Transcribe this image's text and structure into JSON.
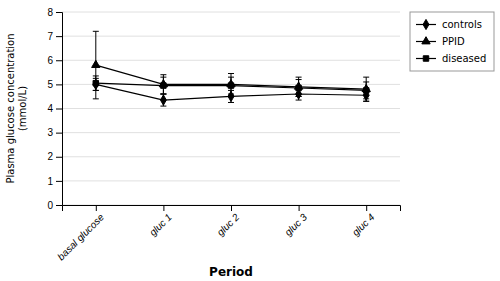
{
  "chart_data": {
    "type": "line",
    "x_label": "Period",
    "y_label": "Plasma glucose concentration\n(mmol/L)",
    "categories": [
      "basal glucose",
      "gluc 1",
      "gluc 2",
      "gluc 3",
      "gluc 4"
    ],
    "series": [
      {
        "name": "controls",
        "color": "#000000",
        "marker": "diamond",
        "line_style": "solid",
        "values": [
          5.0,
          4.35,
          4.5,
          4.6,
          4.55
        ],
        "errors": [
          0.25,
          0.25,
          0.25,
          0.25,
          0.25
        ]
      },
      {
        "name": "PPID",
        "color": "#000000",
        "marker": "triangle",
        "line_style": "solid",
        "values": [
          5.8,
          5.0,
          5.0,
          4.9,
          4.8
        ],
        "errors": [
          1.4,
          0.4,
          0.45,
          0.4,
          0.5
        ]
      },
      {
        "name": "diseased",
        "color": "#000000",
        "marker": "square",
        "line_style": "solid",
        "values": [
          5.05,
          4.95,
          4.95,
          4.85,
          4.75
        ],
        "errors": [
          0.3,
          0.35,
          0.35,
          0.35,
          0.35
        ]
      }
    ],
    "ylim": [
      0,
      8
    ],
    "yticks": [
      0,
      1,
      2,
      3,
      4,
      5,
      6,
      7,
      8
    ],
    "grid": true,
    "legend": "right"
  }
}
